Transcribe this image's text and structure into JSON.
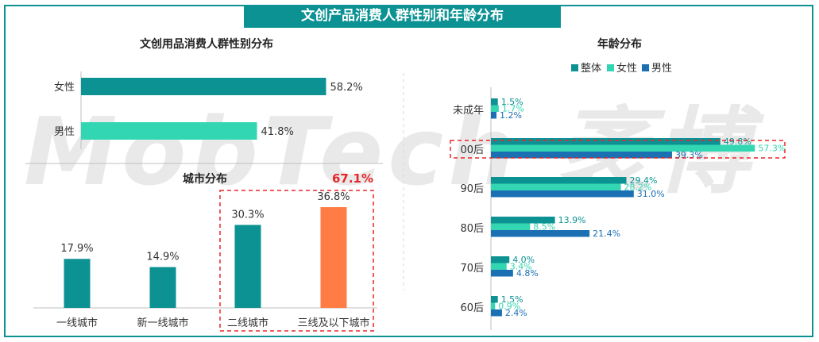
{
  "title": "文创产品消费人群性别和年龄分布",
  "watermark": "MobTech 袤博",
  "colors": {
    "teal": "#0d9293",
    "mint": "#33d6b2",
    "blue": "#1b6fb3",
    "orange": "#ff7d45",
    "highlight_red": "#e8262a",
    "axis": "#bfbfbf",
    "text": "#333333"
  },
  "chart_data": [
    {
      "type": "bar",
      "orientation": "horizontal",
      "title": "文创用品消费人群性别分布",
      "categories": [
        "女性",
        "男性"
      ],
      "values": [
        58.2,
        41.8
      ],
      "value_labels": [
        "58.2%",
        "41.8%"
      ]
    },
    {
      "type": "bar",
      "title": "城市分布",
      "categories": [
        "一线城市",
        "新一线城市",
        "二线城市",
        "三线及以下城市"
      ],
      "values": [
        17.9,
        14.9,
        30.3,
        36.8
      ],
      "value_labels": [
        "17.9%",
        "14.9%",
        "30.3%",
        "36.8%"
      ],
      "annotation": "67.1%"
    },
    {
      "type": "bar",
      "orientation": "horizontal",
      "title": "年龄分布",
      "categories": [
        "未成年",
        "00后",
        "90后",
        "80后",
        "70后",
        "60后"
      ],
      "legend_position": "top",
      "series": [
        {
          "name": "整体",
          "values": [
            1.5,
            49.8,
            29.4,
            13.9,
            4.0,
            1.5
          ],
          "labels": [
            "1.5%",
            "49.8%",
            "29.4%",
            "13.9%",
            "4.0%",
            "1.5%"
          ]
        },
        {
          "name": "女性",
          "values": [
            1.7,
            57.3,
            28.2,
            8.5,
            3.4,
            0.9
          ],
          "labels": [
            "1.7%",
            "57.3%",
            "28.2%",
            "8.5%",
            "3.4%",
            "0.9%"
          ]
        },
        {
          "name": "男性",
          "values": [
            1.2,
            39.3,
            31.0,
            21.4,
            4.8,
            2.4
          ],
          "labels": [
            "1.2%",
            "39.3%",
            "31.0%",
            "21.4%",
            "4.8%",
            "2.4%"
          ]
        }
      ]
    }
  ]
}
